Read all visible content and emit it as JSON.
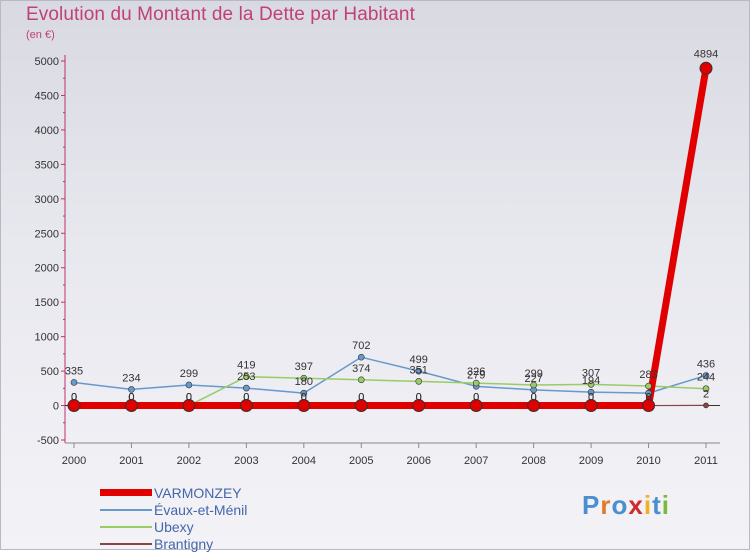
{
  "header": {
    "title": "Evolution du Montant de la Dette par Habitant",
    "unit": "(en €)"
  },
  "logo": {
    "letters": [
      "P",
      "r",
      "o",
      "x",
      "i",
      "t",
      "i"
    ],
    "colors": [
      "#4a8fd0",
      "#e07a2a",
      "#4a8fd0",
      "#d12a2a",
      "#f0b020",
      "#4a8fd0",
      "#7cb83a"
    ]
  },
  "chart_data": {
    "type": "line",
    "title": "Evolution du Montant de la Dette par Habitant",
    "ylabel": "(en €)",
    "x": [
      "2000",
      "2001",
      "2002",
      "2003",
      "2004",
      "2005",
      "2006",
      "2007",
      "2008",
      "2009",
      "2010",
      "2011"
    ],
    "ylim": [
      -500,
      5000
    ],
    "yticks": [
      "-500",
      "0",
      "500",
      "1000",
      "1500",
      "2000",
      "2500",
      "3000",
      "3500",
      "4000",
      "4500",
      "5000"
    ],
    "grid": false,
    "legend_position": "bottom-left",
    "series": [
      {
        "name": "VARMONZEY",
        "color": "#e00000",
        "values": [
          0,
          0,
          0,
          0,
          0,
          0,
          0,
          0,
          0,
          0,
          0,
          4894
        ],
        "labels": [
          "0",
          "0",
          "0",
          "0",
          "0",
          "0",
          "0",
          "0",
          "0",
          "0",
          "0",
          "4894"
        ]
      },
      {
        "name": "Évaux-et-Ménil",
        "color": "#6699cc",
        "values": [
          335,
          234,
          299,
          253,
          180,
          702,
          499,
          279,
          227,
          194,
          180,
          436
        ],
        "labels": [
          "335",
          "234",
          "299",
          "253",
          "180",
          "702",
          "499",
          "279",
          "227",
          "194",
          "",
          "436"
        ]
      },
      {
        "name": "Ubexy",
        "color": "#99cc66",
        "values": [
          0,
          0,
          0,
          419,
          397,
          374,
          351,
          326,
          299,
          307,
          283,
          244
        ],
        "labels": [
          "0",
          "0",
          "0",
          "419",
          "397",
          "374",
          "351",
          "326",
          "299",
          "307",
          "283",
          "244"
        ]
      },
      {
        "name": "Brantigny",
        "color": "#884444",
        "values": [
          0,
          0,
          0,
          0,
          0,
          0,
          0,
          0,
          0,
          0,
          0,
          2
        ],
        "labels": [
          "0",
          "0",
          "0",
          "0",
          "0",
          "0",
          "0",
          "0",
          "0",
          "0",
          "0",
          "2"
        ]
      }
    ]
  }
}
